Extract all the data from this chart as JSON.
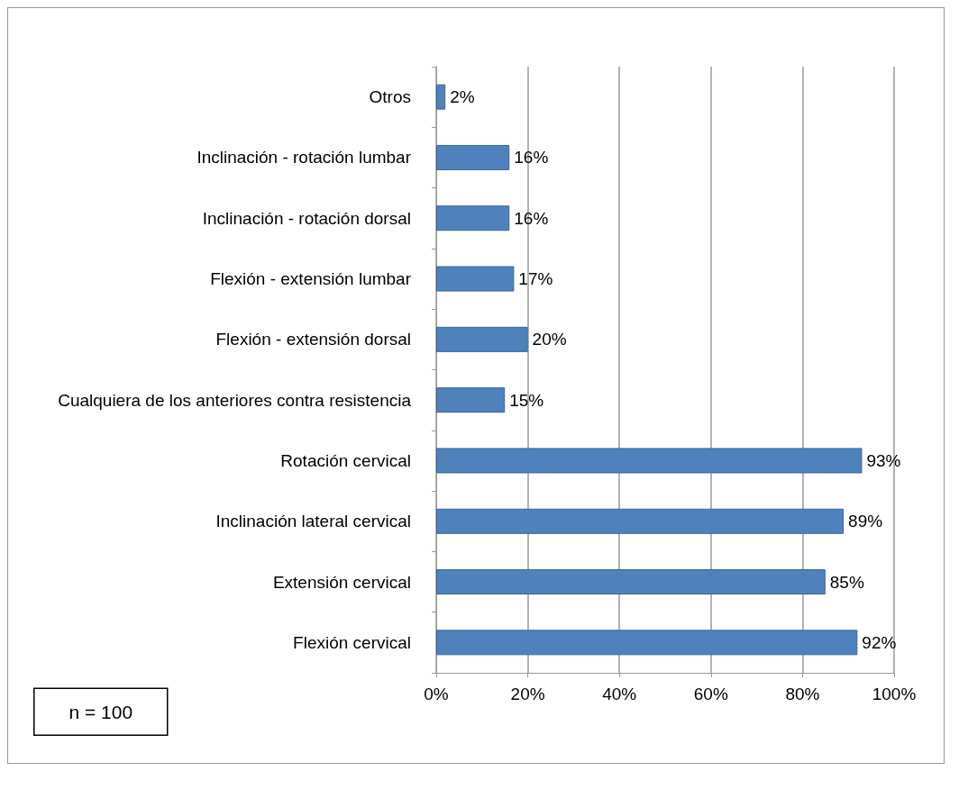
{
  "chart_data": {
    "type": "bar",
    "orientation": "horizontal",
    "categories": [
      "Otros",
      "Inclinación - rotación lumbar",
      "Inclinación - rotación dorsal",
      "Flexión - extensión lumbar",
      "Flexión - extensión dorsal",
      "Cualquiera de los anteriores contra resistencia",
      "Rotación cervical",
      "Inclinación lateral cervical",
      "Extensión cervical",
      "Flexión cervical"
    ],
    "values": [
      2,
      16,
      16,
      17,
      20,
      15,
      93,
      89,
      85,
      92
    ],
    "value_labels": [
      "2%",
      "16%",
      "16%",
      "17%",
      "20%",
      "15%",
      "93%",
      "89%",
      "85%",
      "92%"
    ],
    "color": "#4f81bd",
    "xlim": [
      0,
      100
    ],
    "xticks": [
      {
        "value": 0,
        "label": "0%"
      },
      {
        "value": 20,
        "label": "20%"
      },
      {
        "value": 40,
        "label": "40%"
      },
      {
        "value": 60,
        "label": "60%"
      },
      {
        "value": 80,
        "label": "80%"
      },
      {
        "value": 100,
        "label": "100%"
      }
    ],
    "grid": "x",
    "annotations": [
      "n = 100"
    ]
  }
}
